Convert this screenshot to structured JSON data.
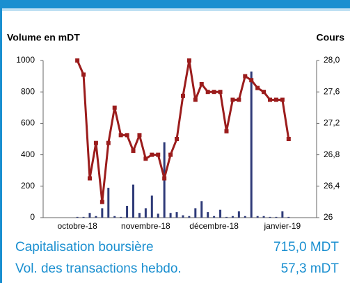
{
  "chart_data": {
    "type": "bar-line",
    "y_label": "Volume en mDT",
    "y2_label": "Cours",
    "categories": [
      null,
      null,
      null,
      null,
      null,
      "octobre-18",
      null,
      null,
      null,
      null,
      null,
      null,
      null,
      null,
      null,
      null,
      "novembre-18",
      null,
      null,
      null,
      null,
      null,
      null,
      null,
      null,
      null,
      null,
      "décembre-18",
      null,
      null,
      null,
      null,
      null,
      null,
      null,
      null,
      null,
      null,
      "janvier-19",
      null,
      null,
      null,
      null,
      null
    ],
    "series": [
      {
        "type": "bar",
        "color": "#2e3a78",
        "values": [
          0,
          0,
          0,
          0,
          0,
          5,
          5,
          30,
          10,
          60,
          190,
          10,
          5,
          75,
          210,
          30,
          60,
          140,
          25,
          480,
          30,
          35,
          15,
          10,
          60,
          105,
          35,
          10,
          50,
          5,
          10,
          40,
          10,
          930,
          10,
          10,
          5,
          5,
          40,
          5,
          0,
          0,
          0,
          0
        ]
      },
      {
        "type": "line",
        "axis": "y2",
        "color": "#9b1c1c",
        "values": [
          null,
          null,
          null,
          null,
          null,
          28.0,
          27.82,
          26.5,
          26.95,
          26.2,
          26.95,
          27.4,
          27.05,
          27.05,
          26.85,
          27.05,
          26.75,
          26.8,
          26.8,
          26.5,
          26.8,
          27.0,
          27.55,
          28.0,
          27.5,
          27.7,
          27.6,
          27.6,
          27.6,
          27.1,
          27.5,
          27.5,
          27.8,
          27.75,
          27.65,
          27.6,
          27.5,
          27.5,
          27.5,
          27.0,
          null,
          null,
          null,
          null
        ]
      }
    ],
    "ylim": [
      0,
      1000
    ],
    "yticks": [
      0,
      200,
      400,
      600,
      800,
      1000
    ],
    "y2lim": [
      26,
      28
    ],
    "y2ticks": [
      26,
      {
        "value": 26.4,
        "label": "26,4"
      },
      {
        "value": 26.8,
        "label": "26,8"
      },
      {
        "value": 27.2,
        "label": "27,2"
      },
      {
        "value": 27.6,
        "label": "27,6"
      },
      {
        "value": 28,
        "label": "28,0"
      }
    ]
  },
  "info": [
    {
      "label": "Capitalisation boursière",
      "value": "715,0 MDT"
    },
    {
      "label": "Vol. des transactions hebdo.",
      "value": "57,3 mDT"
    }
  ]
}
